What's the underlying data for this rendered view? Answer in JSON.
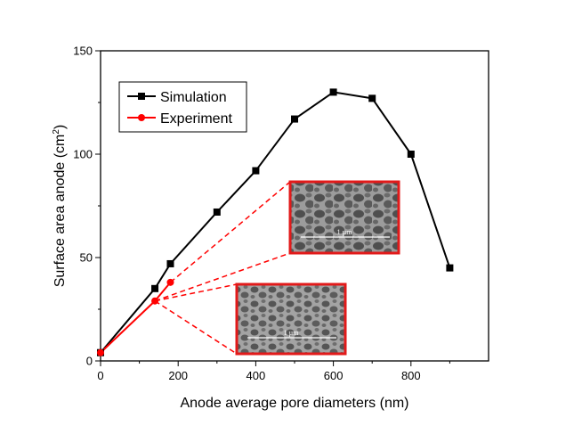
{
  "chart_data": {
    "type": "line",
    "title": "",
    "xlabel": "Anode average pore diameters (nm)",
    "ylabel_main": "Surface area anode (cm",
    "ylabel_sup": "2",
    "ylabel_close": ")",
    "xlim": [
      0,
      1000
    ],
    "ylim": [
      0,
      150
    ],
    "xticks": [
      0,
      200,
      400,
      600,
      800
    ],
    "yticks": [
      0,
      50,
      100,
      150
    ],
    "grid": false,
    "legend_position": "top-left",
    "series": [
      {
        "name": "Simulation",
        "color": "#000000",
        "marker": "square",
        "x": [
          0,
          140,
          180,
          300,
          400,
          500,
          600,
          700,
          800,
          900
        ],
        "y": [
          4,
          35,
          47,
          72,
          92,
          117,
          130,
          127,
          100,
          45
        ]
      },
      {
        "name": "Experiment",
        "color": "#ff0000",
        "marker": "circle",
        "x": [
          0,
          140,
          180
        ],
        "y": [
          4,
          29,
          38
        ]
      }
    ]
  },
  "insets": [
    {
      "name": "sem-inset-upper",
      "scale_label": "1 µm",
      "border_color": "#e21a1a",
      "points_to": [
        [
          180,
          38
        ],
        [
          140,
          29
        ]
      ]
    },
    {
      "name": "sem-inset-lower",
      "scale_label": "1 µm",
      "border_color": "#e21a1a",
      "points_to": [
        [
          140,
          29
        ],
        [
          140,
          29
        ]
      ]
    }
  ]
}
